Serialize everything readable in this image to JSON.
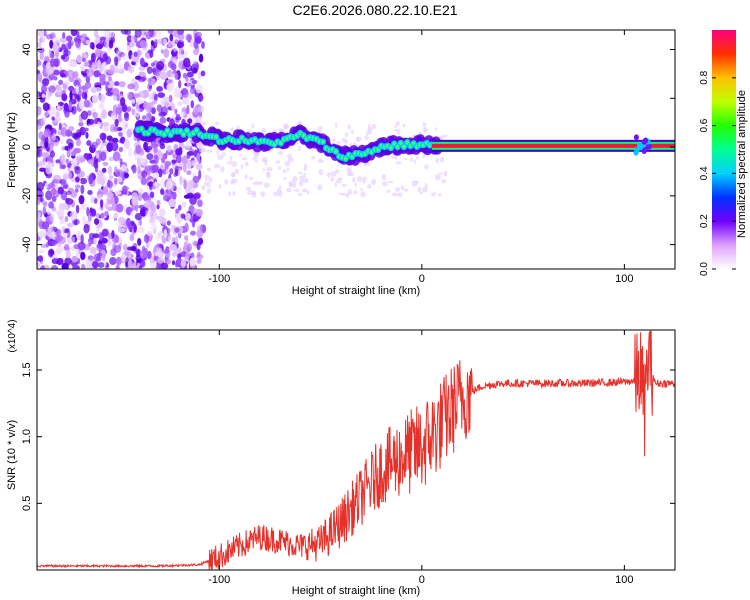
{
  "title": "C2E6.2026.080.22.10.E21",
  "chart_data": [
    {
      "type": "heatmap",
      "xlabel": "Height of straight line (km)",
      "ylabel": "Frequency (Hz)",
      "xlim": [
        -190,
        125
      ],
      "ylim": [
        -50,
        48
      ],
      "xticks": [
        -100,
        0,
        100
      ],
      "yticks": [
        -40,
        -20,
        0,
        20,
        40
      ],
      "xtick_labels": [
        "-100",
        "0",
        "100"
      ],
      "ytick_labels": [
        "-40",
        "-20",
        "0",
        "20",
        "40"
      ],
      "colorbar": {
        "label": "Normalized spectral amplitude",
        "range": [
          0,
          1
        ],
        "ticks": [
          0.0,
          0.2,
          0.4,
          0.6,
          0.8
        ],
        "tick_labels": [
          "0.0",
          "0.2",
          "0.4",
          "0.6",
          "0.8"
        ]
      },
      "ridge": {
        "x": [
          -140,
          -130,
          -120,
          -110,
          -100,
          -90,
          -80,
          -70,
          -60,
          -50,
          -40,
          -30,
          -20,
          -10,
          0,
          5,
          20,
          50,
          80,
          100,
          110,
          125
        ],
        "y": [
          7,
          6,
          6,
          6,
          3,
          3,
          2,
          2,
          5,
          2,
          -4,
          -3,
          0,
          1,
          1,
          1,
          0.5,
          0.5,
          0.5,
          0.5,
          0.5,
          0.5
        ]
      }
    },
    {
      "type": "line",
      "xlabel": "Height of straight line (km)",
      "ylabel": "SNR (10 * v/v)",
      "yscale_label": "(x10^4)",
      "xlim": [
        -190,
        125
      ],
      "ylim": [
        0,
        1.8
      ],
      "xticks": [
        -100,
        0,
        100
      ],
      "yticks": [
        0.5,
        1.0,
        1.5
      ],
      "xtick_labels": [
        "-100",
        "0",
        "100"
      ],
      "ytick_labels": [
        "0.5",
        "1.0",
        "1.5"
      ],
      "series": [
        {
          "name": "SNR",
          "color": "#e8302a",
          "x": [
            -190,
            -160,
            -130,
            -110,
            -100,
            -90,
            -80,
            -70,
            -60,
            -50,
            -40,
            -30,
            -20,
            -10,
            0,
            10,
            20,
            30,
            40,
            60,
            80,
            100,
            105,
            108,
            110,
            112,
            115,
            125
          ],
          "y": [
            0.03,
            0.03,
            0.03,
            0.04,
            0.1,
            0.18,
            0.25,
            0.22,
            0.18,
            0.2,
            0.35,
            0.55,
            0.75,
            0.85,
            0.92,
            1.1,
            1.3,
            1.38,
            1.4,
            1.4,
            1.4,
            1.41,
            1.42,
            1.5,
            1.2,
            1.65,
            1.4,
            1.4
          ]
        }
      ]
    }
  ]
}
